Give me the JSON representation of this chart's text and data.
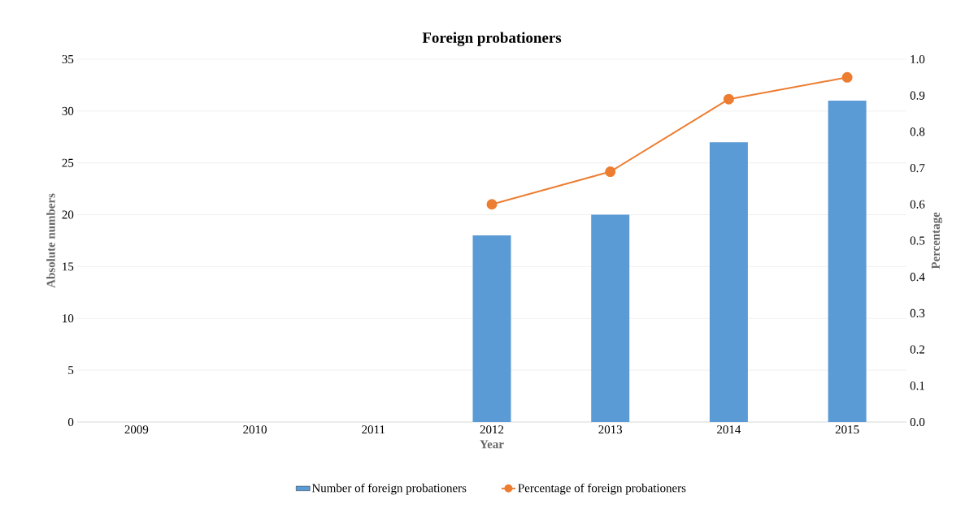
{
  "chart_data": {
    "type": "bar",
    "title": "Foreign probationers",
    "xlabel": "Year",
    "ylabel": "Absolute numbers",
    "y2label": "Percentage",
    "categories": [
      "2009",
      "2010",
      "2011",
      "2012",
      "2013",
      "2014",
      "2015"
    ],
    "series": [
      {
        "name": "Number of foreign probationers",
        "color": "#5b9bd5",
        "values": [
          null,
          null,
          null,
          18,
          20,
          27,
          31
        ]
      },
      {
        "name": "Percentage of foreign probationers",
        "type": "line",
        "axis": "y2",
        "color": "#ed7d31",
        "values": [
          null,
          null,
          null,
          0.6,
          0.69,
          0.89,
          0.95
        ]
      }
    ],
    "ylim": [
      0,
      35
    ],
    "yticks": [
      0,
      5,
      10,
      15,
      20,
      25,
      30,
      35
    ],
    "y2lim": [
      0,
      1
    ],
    "y2ticks": [
      {
        "value": 0,
        "label": "0.0"
      },
      {
        "value": 0.1,
        "label": "0.1"
      },
      {
        "value": 0.2,
        "label": "0.2"
      },
      {
        "value": 0.3,
        "label": "0.3"
      },
      {
        "value": 0.4,
        "label": "0.4"
      },
      {
        "value": 0.5,
        "label": "0.5"
      },
      {
        "value": 0.6,
        "label": "0.6"
      },
      {
        "value": 0.7,
        "label": "0.7"
      },
      {
        "value": 0.8,
        "label": "0.8"
      },
      {
        "value": 0.9,
        "label": "0.9"
      },
      {
        "value": 1,
        "label": "1.0"
      }
    ],
    "grid": "y",
    "legend": "bottom",
    "marker": "circle"
  }
}
